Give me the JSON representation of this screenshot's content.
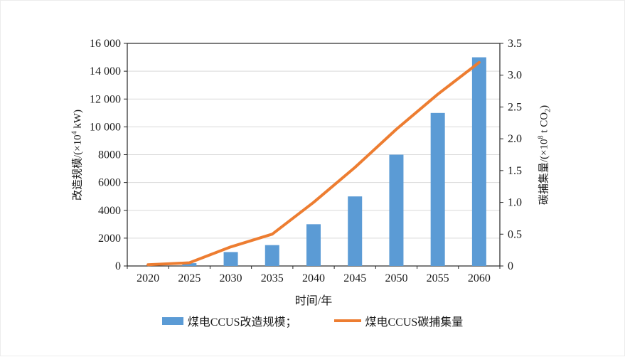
{
  "colors": {
    "bar": "#5B9BD5",
    "line": "#ED7D31",
    "grid": "#D9D9D9",
    "axis": "#262626",
    "text": "#1a1a1a"
  },
  "chart_data": {
    "type": "bar+line",
    "title": "",
    "categories": [
      "2020",
      "2025",
      "2030",
      "2035",
      "2040",
      "2045",
      "2050",
      "2055",
      "2060"
    ],
    "series": [
      {
        "name": "煤电CCUS改造规模",
        "type": "bar",
        "axis": "left",
        "color": "#5B9BD5",
        "values": [
          0,
          200,
          1000,
          1500,
          3000,
          5000,
          8000,
          11000,
          15000
        ]
      },
      {
        "name": "煤电CCUS碳捕集量",
        "type": "line",
        "axis": "right",
        "color": "#ED7D31",
        "values": [
          0.02,
          0.05,
          0.3,
          0.5,
          1.0,
          1.55,
          2.15,
          2.7,
          3.2
        ]
      }
    ],
    "xlabel": "时间/年",
    "left_axis": {
      "min": 0,
      "max": 16000,
      "ticks": [
        "0",
        "2000",
        "4000",
        "6000",
        "8000",
        "10 000",
        "12 000",
        "14 000",
        "16 000"
      ],
      "label_parts": [
        {
          "t": "改造规模/(×10"
        },
        {
          "sup": "4"
        },
        {
          "t": " kW)"
        }
      ]
    },
    "right_axis": {
      "min": 0,
      "max": 3.5,
      "ticks": [
        "0",
        "0.5",
        "1.0",
        "1.5",
        "2.0",
        "2.5",
        "3.0",
        "3.5"
      ],
      "label_parts": [
        {
          "t": "碳捕集量/(×10"
        },
        {
          "sup": "8"
        },
        {
          "t": " t CO"
        },
        {
          "sub": "2"
        },
        {
          "t": ")"
        }
      ]
    },
    "grid": true,
    "legend_position": "bottom",
    "legend": [
      {
        "label": "煤电CCUS改造规模；",
        "swatch": "bar"
      },
      {
        "label": "煤电CCUS碳捕集量",
        "swatch": "line"
      }
    ]
  }
}
